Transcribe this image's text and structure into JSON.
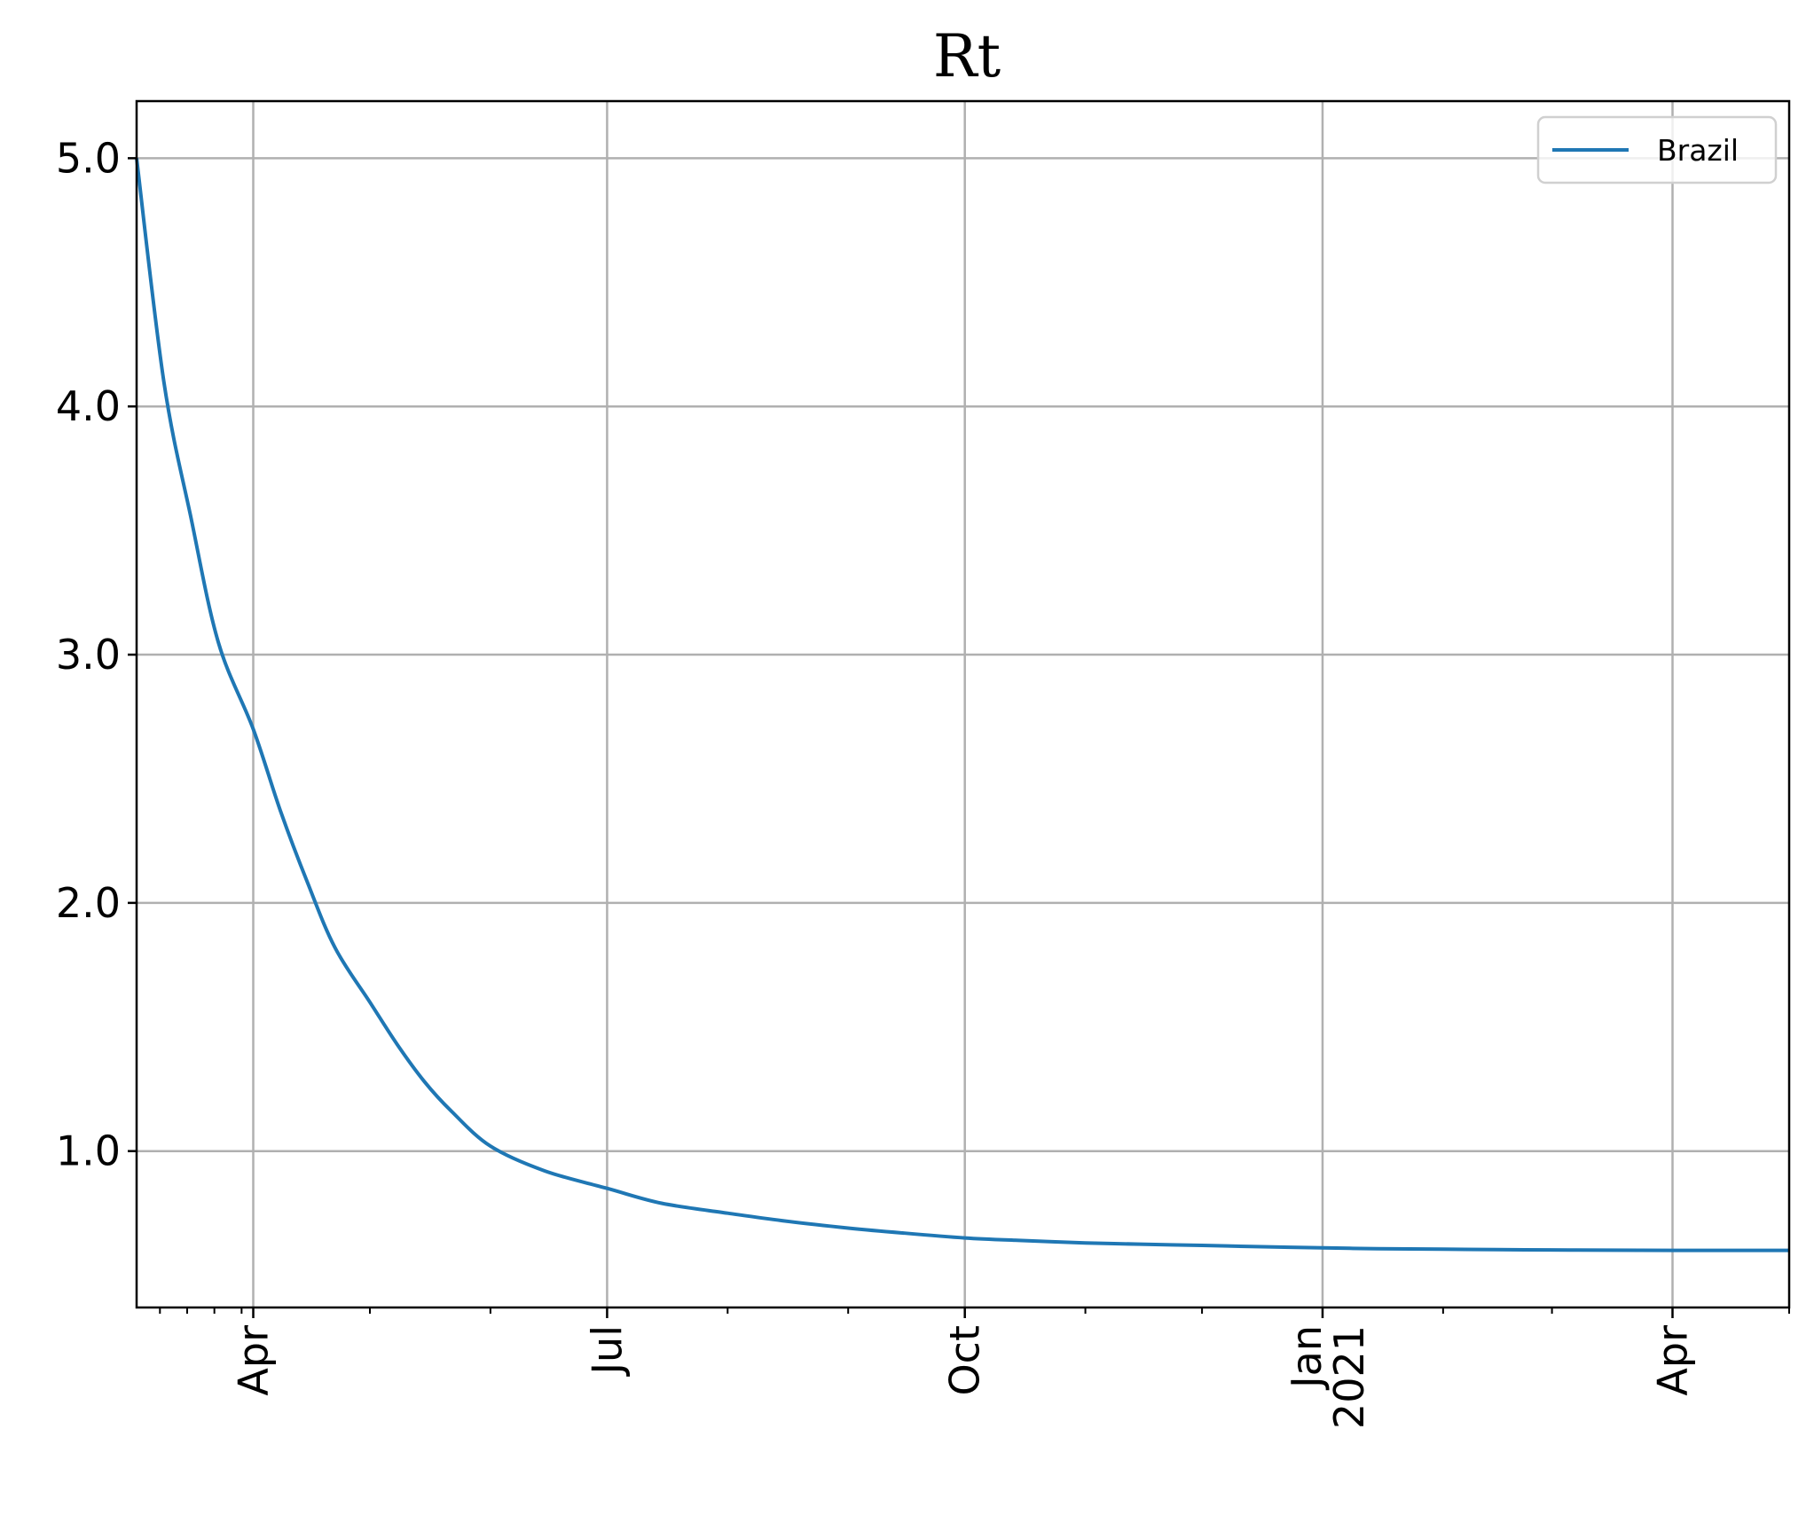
{
  "chart_data": {
    "type": "line",
    "title": "Rt",
    "xlabel": "",
    "ylabel": "",
    "x_range": [
      "2020-03-02",
      "2021-05-01"
    ],
    "ylim": [
      0.37,
      5.23
    ],
    "grid": true,
    "legend_position": "upper right",
    "y_ticks": [
      {
        "value": 1.0,
        "label": "1.0"
      },
      {
        "value": 2.0,
        "label": "2.0"
      },
      {
        "value": 3.0,
        "label": "3.0"
      },
      {
        "value": 4.0,
        "label": "4.0"
      },
      {
        "value": 5.0,
        "label": "5.0"
      }
    ],
    "x_ticks": [
      {
        "date": "2020-04-01",
        "label": "Apr",
        "label2": ""
      },
      {
        "date": "2020-07-01",
        "label": "Jul",
        "label2": ""
      },
      {
        "date": "2020-10-01",
        "label": "Oct",
        "label2": ""
      },
      {
        "date": "2021-01-01",
        "label": "Jan",
        "label2": "2021"
      },
      {
        "date": "2021-04-01",
        "label": "Apr",
        "label2": ""
      }
    ],
    "minor_x_ticks": [
      "2020-03-08",
      "2020-03-15",
      "2020-03-22",
      "2020-03-29",
      "2020-05-01",
      "2020-06-01",
      "2020-08-01",
      "2020-09-01",
      "2020-11-01",
      "2020-12-01",
      "2021-02-01",
      "2021-03-01",
      "2021-05-01"
    ],
    "series": [
      {
        "name": "Brazil",
        "color": "#1f77b4",
        "x": [
          "2020-03-02",
          "2020-03-09",
          "2020-03-16",
          "2020-03-23",
          "2020-04-01",
          "2020-04-08",
          "2020-04-15",
          "2020-04-22",
          "2020-05-01",
          "2020-05-08",
          "2020-05-15",
          "2020-05-22",
          "2020-06-01",
          "2020-06-15",
          "2020-07-01",
          "2020-07-15",
          "2020-08-01",
          "2020-08-15",
          "2020-09-01",
          "2020-09-15",
          "2020-10-01",
          "2020-10-15",
          "2020-11-01",
          "2020-11-15",
          "2020-12-01",
          "2020-12-15",
          "2021-01-01",
          "2021-01-15",
          "2021-02-01",
          "2021-02-15",
          "2021-03-01",
          "2021-03-15",
          "2021-04-01",
          "2021-04-15",
          "2021-05-01"
        ],
        "y": [
          5.0,
          4.1,
          3.55,
          3.05,
          2.7,
          2.37,
          2.08,
          1.82,
          1.6,
          1.43,
          1.28,
          1.16,
          1.02,
          0.92,
          0.85,
          0.79,
          0.75,
          0.72,
          0.69,
          0.67,
          0.65,
          0.64,
          0.63,
          0.625,
          0.62,
          0.615,
          0.61,
          0.607,
          0.605,
          0.603,
          0.602,
          0.601,
          0.6,
          0.6,
          0.6
        ]
      }
    ]
  }
}
